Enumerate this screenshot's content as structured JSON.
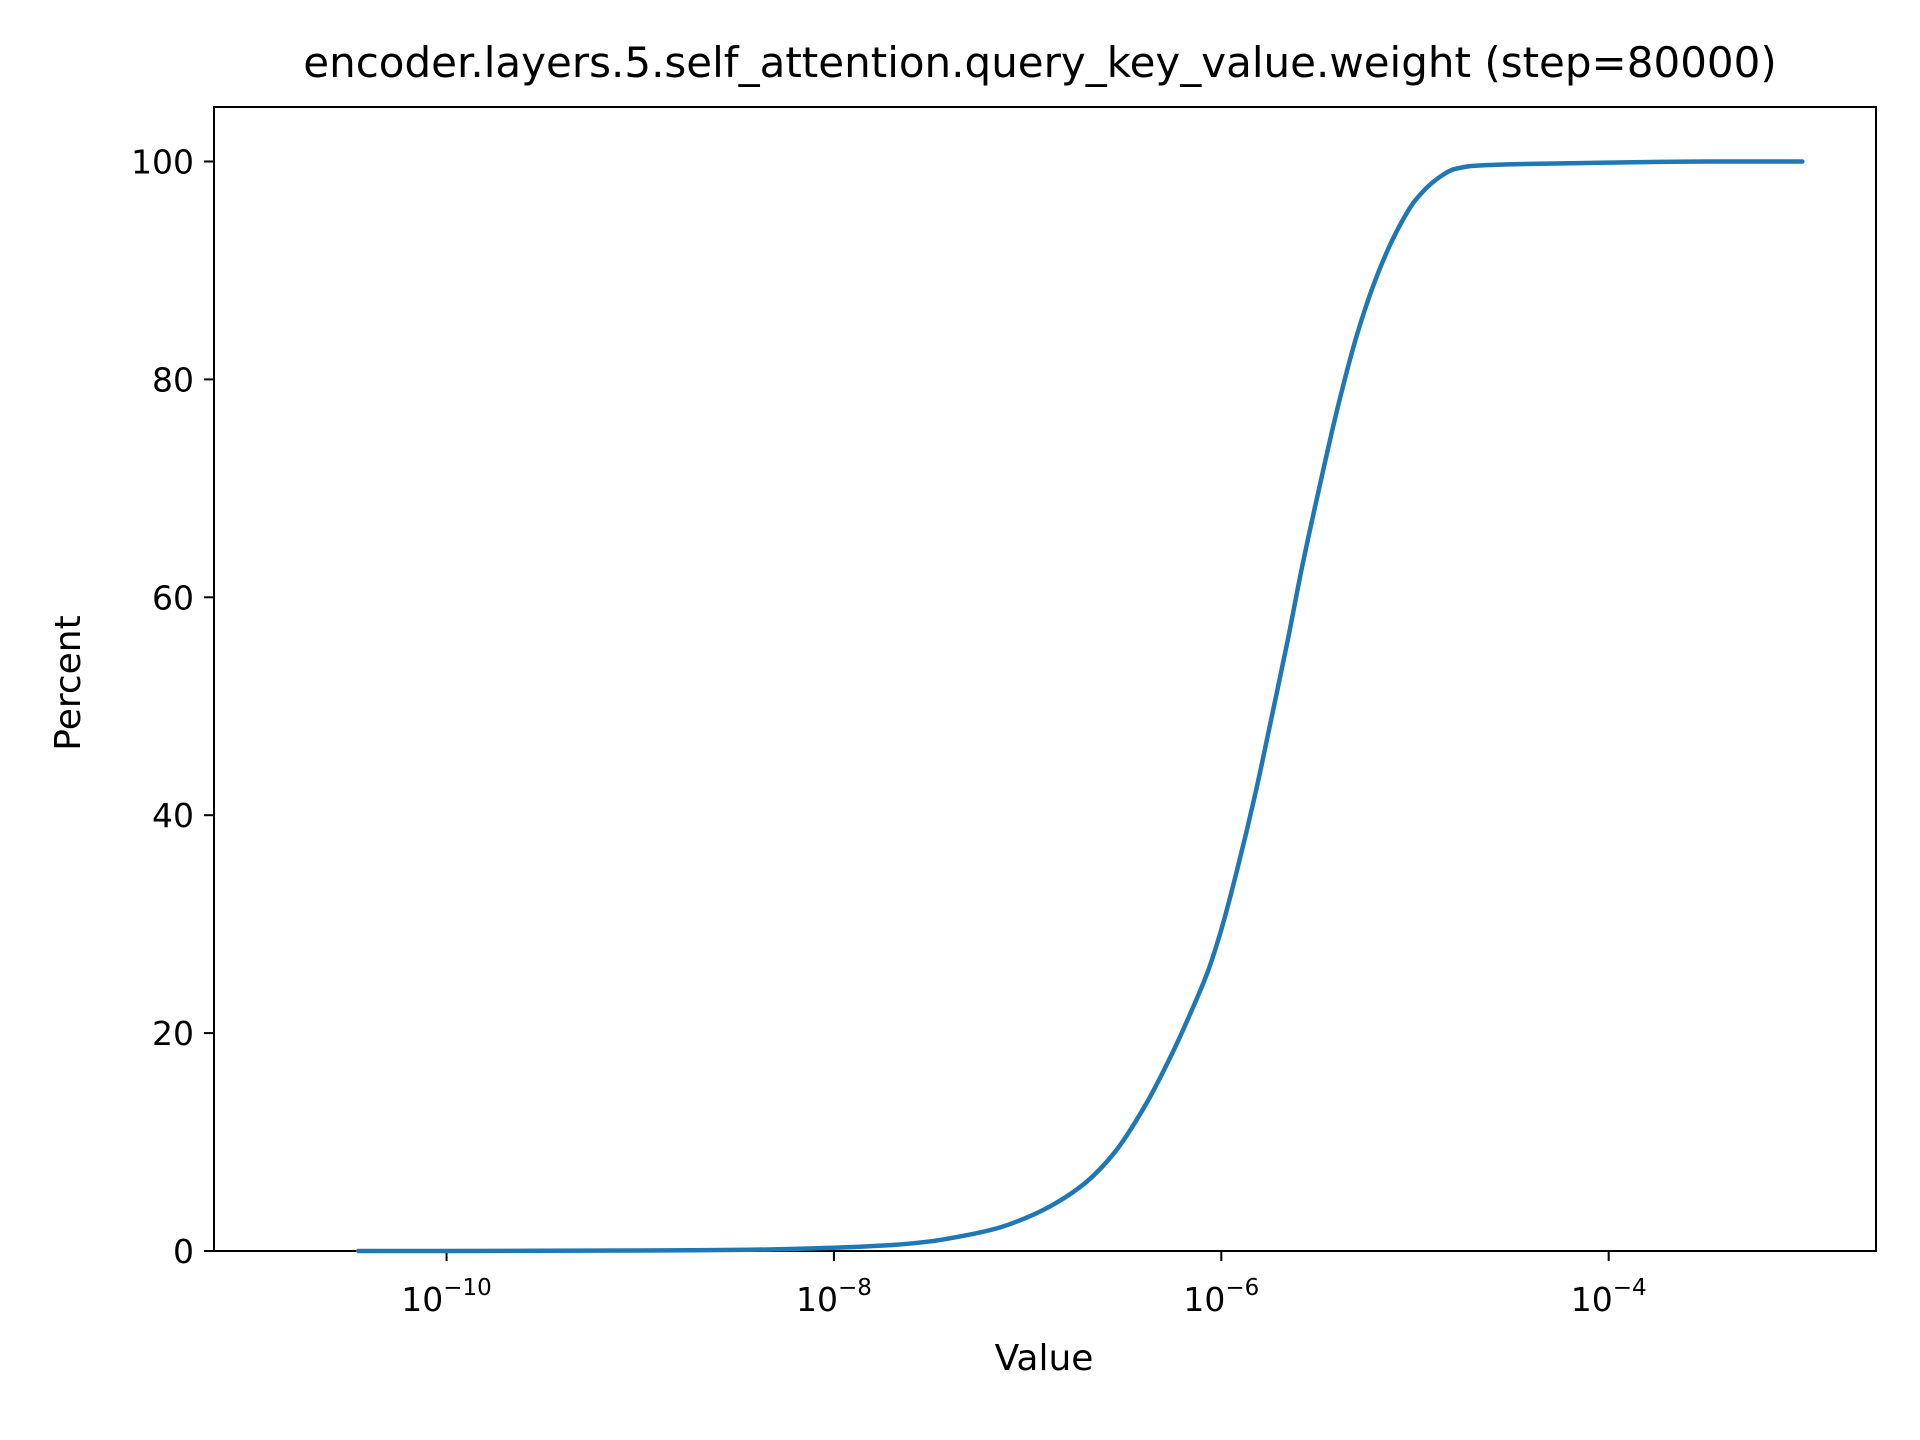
{
  "chart_data": {
    "type": "line",
    "title": "encoder.layers.5.self_attention.query_key_value.weight (step=80000)",
    "xlabel": "Value",
    "ylabel": "Percent",
    "x_scale": "log",
    "xlim": [
      6.3e-12,
      0.0024
    ],
    "ylim": [
      0,
      105
    ],
    "grid": false,
    "x_ticks": [
      {
        "value": 1e-10,
        "base": "10",
        "exp": "−10"
      },
      {
        "value": 1e-08,
        "base": "10",
        "exp": "−8"
      },
      {
        "value": 1e-06,
        "base": "10",
        "exp": "−6"
      },
      {
        "value": 0.0001,
        "base": "10",
        "exp": "−4"
      }
    ],
    "y_ticks": [
      {
        "value": 0,
        "label": "0"
      },
      {
        "value": 20,
        "label": "20"
      },
      {
        "value": 40,
        "label": "40"
      },
      {
        "value": 60,
        "label": "60"
      },
      {
        "value": 80,
        "label": "80"
      },
      {
        "value": 100,
        "label": "100"
      }
    ],
    "series": [
      {
        "color": "#1f77b4",
        "x": [
          3.5e-11,
          1e-10,
          3.2e-10,
          1e-09,
          3.2e-09,
          1e-08,
          2e-08,
          3.2e-08,
          5e-08,
          7e-08,
          1e-07,
          1.4e-07,
          2e-07,
          2.8e-07,
          4e-07,
          5.6e-07,
          7e-07,
          8.5e-07,
          1e-06,
          1.2e-06,
          1.5e-06,
          1.8e-06,
          2.2e-06,
          2.6e-06,
          3.2e-06,
          4e-06,
          5e-06,
          6.3e-06,
          8e-06,
          1e-05,
          1.3e-05,
          1.6e-05,
          2e-05,
          3.2e-05,
          0.0001,
          0.00032,
          0.001
        ],
        "values": [
          0,
          0,
          0.02,
          0.05,
          0.1,
          0.3,
          0.55,
          0.9,
          1.5,
          2.1,
          3.1,
          4.4,
          6.3,
          9.0,
          13.2,
          18.2,
          22.0,
          25.6,
          29.5,
          34.8,
          42.0,
          48.6,
          56.0,
          62.6,
          70.0,
          77.5,
          84.0,
          89.3,
          93.5,
          96.4,
          98.4,
          99.3,
          99.6,
          99.75,
          99.9,
          100,
          100
        ]
      }
    ]
  }
}
